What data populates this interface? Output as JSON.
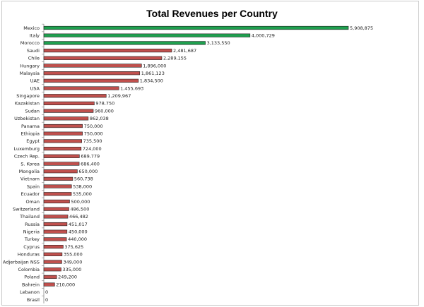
{
  "chart_data": {
    "type": "bar",
    "orientation": "horizontal",
    "title": "Total Revenues per Country",
    "xlabel": "",
    "ylabel": "",
    "xlim": [
      0,
      5908875
    ],
    "grid": false,
    "legend": "none",
    "colors": {
      "highlight": "#1fa04f",
      "default": "#c0504d",
      "highlight_categories": [
        "Mexico",
        "Italy",
        "Morocco"
      ]
    },
    "categories": [
      "Mexico",
      "Italy",
      "Morocco",
      "Saudi",
      "Chile",
      "Hungary",
      "Malaysia",
      "UAE",
      "USA",
      "Singapore",
      "Kazakistan",
      "Sudan",
      "Uzbekistan",
      "Panama",
      "Ethiopia",
      "Egypt",
      "Luxemburg",
      "Czech Rep.",
      "S. Korea",
      "Mongolia",
      "Vietnam",
      "Spain",
      "Ecuador",
      "Oman",
      "Switzerland",
      "Thailand",
      "Russia",
      "Nigeria",
      "Turkey",
      "Cyprus",
      "Honduras",
      "Adjerbaijan NSS",
      "Colombia",
      "Poland",
      "Bahrein",
      "Lebanon",
      "Brasil"
    ],
    "values": [
      5908875,
      4000729,
      3133550,
      2481687,
      2289155,
      1896000,
      1861123,
      1834500,
      1455693,
      1209967,
      978750,
      960000,
      862038,
      750000,
      750000,
      735500,
      724000,
      689779,
      686400,
      650000,
      560738,
      538000,
      535000,
      500000,
      486500,
      466482,
      451017,
      450000,
      440000,
      375625,
      355000,
      349000,
      335000,
      249200,
      210000,
      0,
      0
    ],
    "value_labels": [
      "5,908,875",
      "4,000,729",
      "3,133,550",
      "2,481,687",
      "2,289,155",
      "1,896,000",
      "1,861,123",
      "1,834,500",
      "1,455,693",
      "1,209,967",
      "978,750",
      "960,000",
      "862,038",
      "750,000",
      "750,000",
      "735,500",
      "724,000",
      "689,779",
      "686,400",
      "650,000",
      "560,738",
      "538,000",
      "535,000",
      "500,000",
      "486,500",
      "466,482",
      "451,017",
      "450,000",
      "440,000",
      "375,625",
      "355,000",
      "349,000",
      "335,000",
      "249,200",
      "210,000",
      "0",
      "0"
    ]
  }
}
